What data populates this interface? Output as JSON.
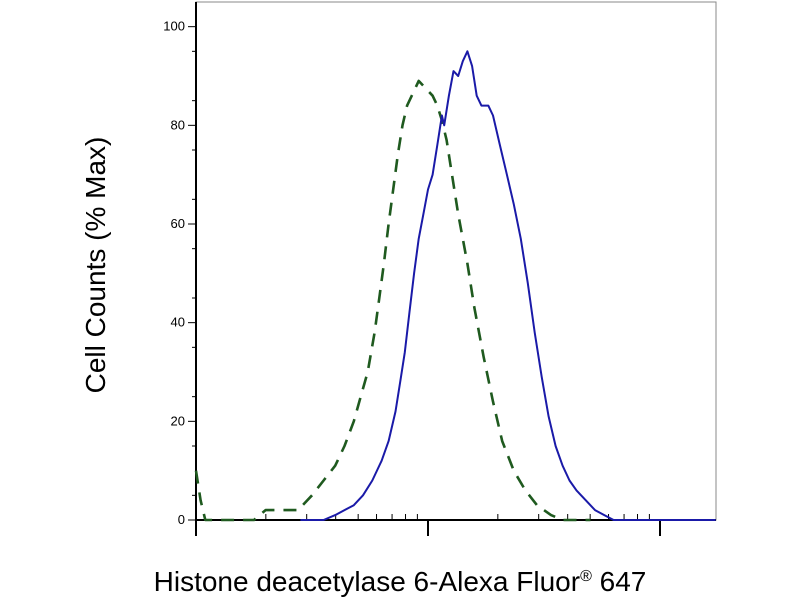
{
  "chart_data": {
    "type": "line",
    "xlabel": {
      "main": "Histone deacetylase 6-Alexa Fluor",
      "reg": "®",
      "tail": " 647"
    },
    "ylabel": "Cell Counts (% Max)",
    "ylim": [
      0,
      100
    ],
    "yticks": [
      0,
      20,
      40,
      60,
      80,
      100
    ],
    "xscale": "log",
    "xlim_decades": [
      0,
      2.24
    ],
    "grid": false,
    "legend": "none",
    "series": [
      {
        "style": "dashed",
        "color": "#1f5a1f",
        "points": [
          [
            0.0,
            10
          ],
          [
            0.02,
            4
          ],
          [
            0.04,
            0
          ],
          [
            0.12,
            0
          ],
          [
            0.2,
            0
          ],
          [
            0.25,
            0
          ],
          [
            0.3,
            2
          ],
          [
            0.38,
            2
          ],
          [
            0.44,
            2
          ],
          [
            0.5,
            5
          ],
          [
            0.55,
            8
          ],
          [
            0.6,
            11
          ],
          [
            0.64,
            15
          ],
          [
            0.68,
            20
          ],
          [
            0.71,
            25
          ],
          [
            0.74,
            30
          ],
          [
            0.77,
            38
          ],
          [
            0.79,
            45
          ],
          [
            0.81,
            52
          ],
          [
            0.83,
            60
          ],
          [
            0.85,
            67
          ],
          [
            0.87,
            74
          ],
          [
            0.89,
            80
          ],
          [
            0.91,
            84
          ],
          [
            0.94,
            87
          ],
          [
            0.96,
            89
          ],
          [
            0.98,
            88
          ],
          [
            1.0,
            87
          ],
          [
            1.02,
            86
          ],
          [
            1.04,
            84
          ],
          [
            1.06,
            81
          ],
          [
            1.08,
            77
          ],
          [
            1.1,
            71
          ],
          [
            1.13,
            62
          ],
          [
            1.17,
            52
          ],
          [
            1.2,
            43
          ],
          [
            1.24,
            33
          ],
          [
            1.28,
            24
          ],
          [
            1.32,
            16
          ],
          [
            1.37,
            10
          ],
          [
            1.42,
            6
          ],
          [
            1.47,
            3
          ],
          [
            1.53,
            1
          ],
          [
            1.58,
            0
          ],
          [
            1.62,
            0
          ],
          [
            1.7,
            0
          ]
        ]
      },
      {
        "style": "solid",
        "color": "#1a1aa8",
        "points": [
          [
            0.45,
            0
          ],
          [
            0.5,
            0
          ],
          [
            0.55,
            0
          ],
          [
            0.6,
            1
          ],
          [
            0.64,
            2
          ],
          [
            0.68,
            3
          ],
          [
            0.72,
            5
          ],
          [
            0.76,
            8
          ],
          [
            0.8,
            12
          ],
          [
            0.83,
            16
          ],
          [
            0.86,
            22
          ],
          [
            0.88,
            28
          ],
          [
            0.9,
            34
          ],
          [
            0.92,
            42
          ],
          [
            0.94,
            50
          ],
          [
            0.96,
            57
          ],
          [
            0.98,
            62
          ],
          [
            1.0,
            67
          ],
          [
            1.02,
            70
          ],
          [
            1.04,
            76
          ],
          [
            1.06,
            82
          ],
          [
            1.07,
            80
          ],
          [
            1.09,
            86
          ],
          [
            1.11,
            91
          ],
          [
            1.13,
            90
          ],
          [
            1.15,
            93
          ],
          [
            1.17,
            95
          ],
          [
            1.19,
            92
          ],
          [
            1.21,
            86
          ],
          [
            1.23,
            84
          ],
          [
            1.26,
            84
          ],
          [
            1.28,
            82
          ],
          [
            1.31,
            76
          ],
          [
            1.34,
            70
          ],
          [
            1.37,
            64
          ],
          [
            1.4,
            57
          ],
          [
            1.43,
            48
          ],
          [
            1.46,
            38
          ],
          [
            1.49,
            29
          ],
          [
            1.52,
            21
          ],
          [
            1.55,
            15
          ],
          [
            1.58,
            11
          ],
          [
            1.61,
            8
          ],
          [
            1.64,
            6
          ],
          [
            1.68,
            4
          ],
          [
            1.72,
            2
          ],
          [
            1.76,
            1
          ],
          [
            1.8,
            0
          ],
          [
            1.86,
            0
          ],
          [
            1.92,
            0
          ],
          [
            2.0,
            0
          ],
          [
            2.1,
            0
          ],
          [
            2.24,
            0
          ]
        ]
      }
    ]
  }
}
